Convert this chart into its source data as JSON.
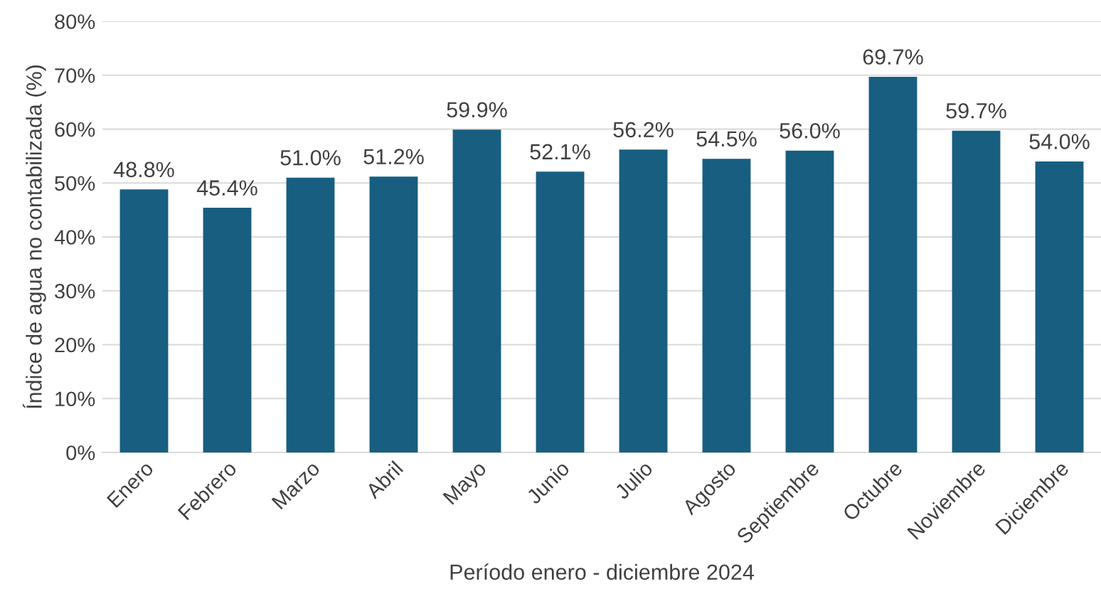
{
  "chart_data": {
    "type": "bar",
    "xlabel": "Período enero - diciembre 2024",
    "ylabel": "Índice de agua no contabilizada (%)",
    "categories": [
      "Enero",
      "Febrero",
      "Marzo",
      "Abril",
      "Mayo",
      "Junio",
      "Julio",
      "Agosto",
      "Septiembre",
      "Octubre",
      "Noviembre",
      "Diciembre"
    ],
    "values": [
      48.8,
      45.4,
      51.0,
      51.2,
      59.9,
      52.1,
      56.2,
      54.5,
      56.0,
      69.7,
      59.7,
      54.0
    ],
    "value_labels": [
      "48.8%",
      "45.4%",
      "51.0%",
      "51.2%",
      "59.9%",
      "52.1%",
      "56.2%",
      "54.5%",
      "56.0%",
      "69.7%",
      "59.7%",
      "54.0%"
    ],
    "color": "#175e80",
    "ylim": [
      0,
      80
    ],
    "yticks": [
      {
        "value": 0,
        "label": "0%"
      },
      {
        "value": 10,
        "label": "10%"
      },
      {
        "value": 20,
        "label": "20%"
      },
      {
        "value": 30,
        "label": "30%"
      },
      {
        "value": 40,
        "label": "40%"
      },
      {
        "value": 50,
        "label": "50%"
      },
      {
        "value": 60,
        "label": "60%"
      },
      {
        "value": 70,
        "label": "70%"
      },
      {
        "value": 80,
        "label": "80%"
      }
    ],
    "grid": "y",
    "legend": false
  }
}
